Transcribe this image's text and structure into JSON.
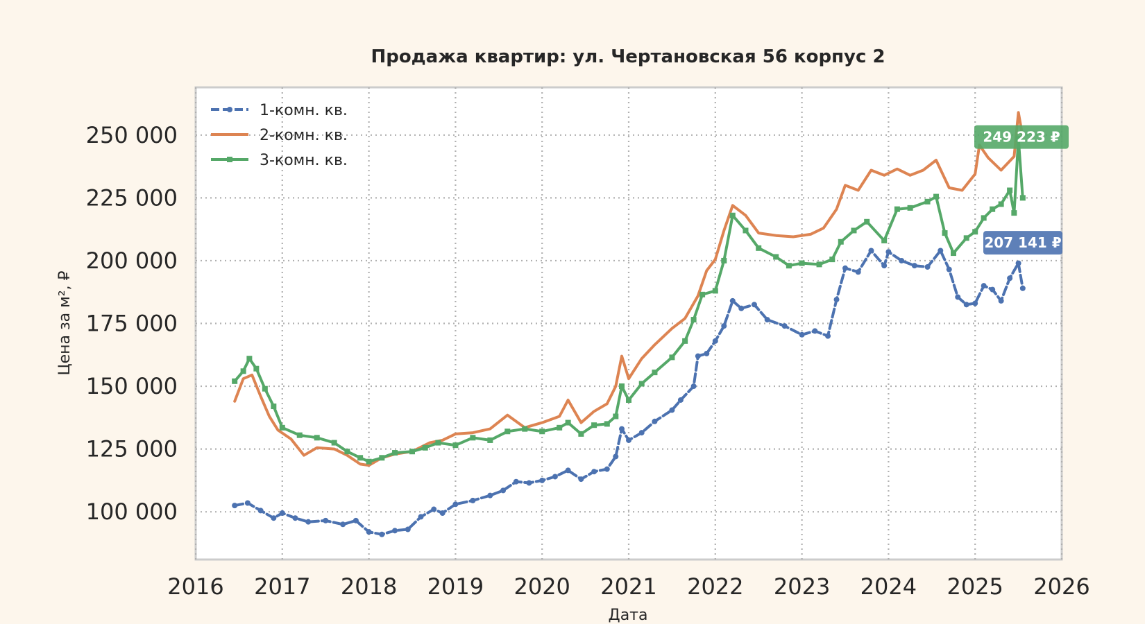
{
  "chart_data": {
    "type": "line",
    "title": "Продажа квартир: ул. Чертановская 56 корпус 2",
    "xlabel": "Дата",
    "ylabel": "Цена за м², ₽",
    "xlim": [
      2016.0,
      2026.0
    ],
    "ylim": [
      81000,
      269000
    ],
    "x_ticks": [
      "2016",
      "2017",
      "2018",
      "2019",
      "2020",
      "2021",
      "2022",
      "2023",
      "2024",
      "2025",
      "2026"
    ],
    "y_ticks": [
      "100 000",
      "125 000",
      "150 000",
      "175 000",
      "200 000",
      "225 000",
      "250 000"
    ],
    "y_tick_values": [
      100000,
      125000,
      150000,
      175000,
      200000,
      225000,
      250000
    ],
    "grid": true,
    "legend_position": "top-left",
    "series": [
      {
        "name": "1-комн. кв.",
        "color": "#4c72b0",
        "style": "dashed-dots",
        "points": [
          [
            2016.45,
            102500
          ],
          [
            2016.6,
            103500
          ],
          [
            2016.75,
            100500
          ],
          [
            2016.9,
            97500
          ],
          [
            2017.0,
            99500
          ],
          [
            2017.15,
            97500
          ],
          [
            2017.3,
            96000
          ],
          [
            2017.5,
            96500
          ],
          [
            2017.7,
            95000
          ],
          [
            2017.85,
            96500
          ],
          [
            2018.0,
            92000
          ],
          [
            2018.15,
            91000
          ],
          [
            2018.3,
            92500
          ],
          [
            2018.45,
            93000
          ],
          [
            2018.6,
            98000
          ],
          [
            2018.75,
            101000
          ],
          [
            2018.85,
            99500
          ],
          [
            2019.0,
            103000
          ],
          [
            2019.2,
            104500
          ],
          [
            2019.4,
            106500
          ],
          [
            2019.55,
            108500
          ],
          [
            2019.7,
            112000
          ],
          [
            2019.85,
            111500
          ],
          [
            2020.0,
            112500
          ],
          [
            2020.15,
            114000
          ],
          [
            2020.3,
            116500
          ],
          [
            2020.45,
            113000
          ],
          [
            2020.6,
            116000
          ],
          [
            2020.75,
            117000
          ],
          [
            2020.85,
            122000
          ],
          [
            2020.92,
            133000
          ],
          [
            2021.0,
            128500
          ],
          [
            2021.15,
            131500
          ],
          [
            2021.3,
            136000
          ],
          [
            2021.5,
            140500
          ],
          [
            2021.6,
            144500
          ],
          [
            2021.75,
            150000
          ],
          [
            2021.8,
            162000
          ],
          [
            2021.9,
            163000
          ],
          [
            2022.0,
            168000
          ],
          [
            2022.1,
            174000
          ],
          [
            2022.2,
            184000
          ],
          [
            2022.3,
            181000
          ],
          [
            2022.45,
            182500
          ],
          [
            2022.6,
            176500
          ],
          [
            2022.8,
            174000
          ],
          [
            2023.0,
            170500
          ],
          [
            2023.15,
            172000
          ],
          [
            2023.3,
            170000
          ],
          [
            2023.4,
            184500
          ],
          [
            2023.5,
            197000
          ],
          [
            2023.65,
            195500
          ],
          [
            2023.8,
            204000
          ],
          [
            2023.95,
            198000
          ],
          [
            2024.0,
            203500
          ],
          [
            2024.15,
            200000
          ],
          [
            2024.3,
            198000
          ],
          [
            2024.45,
            197500
          ],
          [
            2024.6,
            204000
          ],
          [
            2024.7,
            196500
          ],
          [
            2024.8,
            185500
          ],
          [
            2024.9,
            182500
          ],
          [
            2025.0,
            183000
          ],
          [
            2025.1,
            190000
          ],
          [
            2025.2,
            188500
          ],
          [
            2025.3,
            184000
          ],
          [
            2025.4,
            193000
          ],
          [
            2025.5,
            199000
          ],
          [
            2025.55,
            189000
          ]
        ]
      },
      {
        "name": "2-комн. кв.",
        "color": "#dd8452",
        "style": "solid",
        "points": [
          [
            2016.45,
            144000
          ],
          [
            2016.55,
            153000
          ],
          [
            2016.65,
            154500
          ],
          [
            2016.75,
            146000
          ],
          [
            2016.85,
            138000
          ],
          [
            2016.95,
            132500
          ],
          [
            2017.1,
            129000
          ],
          [
            2017.25,
            122500
          ],
          [
            2017.4,
            125500
          ],
          [
            2017.6,
            125000
          ],
          [
            2017.75,
            122500
          ],
          [
            2017.9,
            119000
          ],
          [
            2018.0,
            118500
          ],
          [
            2018.15,
            121500
          ],
          [
            2018.3,
            123000
          ],
          [
            2018.5,
            124000
          ],
          [
            2018.7,
            127500
          ],
          [
            2018.85,
            128500
          ],
          [
            2019.0,
            131000
          ],
          [
            2019.2,
            131500
          ],
          [
            2019.4,
            133000
          ],
          [
            2019.6,
            138500
          ],
          [
            2019.8,
            133500
          ],
          [
            2020.0,
            135500
          ],
          [
            2020.2,
            138000
          ],
          [
            2020.3,
            144500
          ],
          [
            2020.45,
            135500
          ],
          [
            2020.6,
            140000
          ],
          [
            2020.75,
            143000
          ],
          [
            2020.85,
            150000
          ],
          [
            2020.92,
            162000
          ],
          [
            2021.0,
            153000
          ],
          [
            2021.15,
            161000
          ],
          [
            2021.3,
            166500
          ],
          [
            2021.5,
            173000
          ],
          [
            2021.65,
            177000
          ],
          [
            2021.8,
            186000
          ],
          [
            2021.9,
            196000
          ],
          [
            2022.0,
            200500
          ],
          [
            2022.1,
            212000
          ],
          [
            2022.2,
            222000
          ],
          [
            2022.35,
            218000
          ],
          [
            2022.5,
            211000
          ],
          [
            2022.7,
            210000
          ],
          [
            2022.9,
            209500
          ],
          [
            2023.1,
            210500
          ],
          [
            2023.25,
            213000
          ],
          [
            2023.4,
            220500
          ],
          [
            2023.5,
            230000
          ],
          [
            2023.65,
            228000
          ],
          [
            2023.8,
            236000
          ],
          [
            2023.95,
            234000
          ],
          [
            2024.1,
            236500
          ],
          [
            2024.25,
            234000
          ],
          [
            2024.4,
            236000
          ],
          [
            2024.55,
            240000
          ],
          [
            2024.7,
            229000
          ],
          [
            2024.85,
            228000
          ],
          [
            2025.0,
            234500
          ],
          [
            2025.05,
            246000
          ],
          [
            2025.15,
            241000
          ],
          [
            2025.3,
            236000
          ],
          [
            2025.45,
            241500
          ],
          [
            2025.5,
            259000
          ],
          [
            2025.55,
            249223
          ]
        ]
      },
      {
        "name": "3-комн. кв.",
        "color": "#55a868",
        "style": "solid-squares",
        "points": [
          [
            2016.45,
            152000
          ],
          [
            2016.55,
            156000
          ],
          [
            2016.62,
            161000
          ],
          [
            2016.7,
            157000
          ],
          [
            2016.8,
            149000
          ],
          [
            2016.9,
            142000
          ],
          [
            2017.0,
            133500
          ],
          [
            2017.2,
            130500
          ],
          [
            2017.4,
            129500
          ],
          [
            2017.6,
            127500
          ],
          [
            2017.75,
            124000
          ],
          [
            2017.9,
            121500
          ],
          [
            2018.0,
            120000
          ],
          [
            2018.15,
            121500
          ],
          [
            2018.3,
            123500
          ],
          [
            2018.5,
            124000
          ],
          [
            2018.65,
            125500
          ],
          [
            2018.8,
            127500
          ],
          [
            2019.0,
            126500
          ],
          [
            2019.2,
            129500
          ],
          [
            2019.4,
            128500
          ],
          [
            2019.6,
            132000
          ],
          [
            2019.8,
            133000
          ],
          [
            2020.0,
            132000
          ],
          [
            2020.2,
            133500
          ],
          [
            2020.3,
            135500
          ],
          [
            2020.45,
            131000
          ],
          [
            2020.6,
            134500
          ],
          [
            2020.75,
            135000
          ],
          [
            2020.85,
            138000
          ],
          [
            2020.92,
            150000
          ],
          [
            2021.0,
            144500
          ],
          [
            2021.15,
            151000
          ],
          [
            2021.3,
            155500
          ],
          [
            2021.5,
            161500
          ],
          [
            2021.65,
            168000
          ],
          [
            2021.75,
            176500
          ],
          [
            2021.85,
            186500
          ],
          [
            2022.0,
            188000
          ],
          [
            2022.1,
            200000
          ],
          [
            2022.2,
            218000
          ],
          [
            2022.35,
            212000
          ],
          [
            2022.5,
            205000
          ],
          [
            2022.7,
            201500
          ],
          [
            2022.85,
            198000
          ],
          [
            2023.0,
            199000
          ],
          [
            2023.2,
            198500
          ],
          [
            2023.35,
            200500
          ],
          [
            2023.45,
            207500
          ],
          [
            2023.6,
            212000
          ],
          [
            2023.75,
            215500
          ],
          [
            2023.95,
            208000
          ],
          [
            2024.1,
            220500
          ],
          [
            2024.25,
            221000
          ],
          [
            2024.45,
            223500
          ],
          [
            2024.55,
            225500
          ],
          [
            2024.65,
            211000
          ],
          [
            2024.75,
            203000
          ],
          [
            2024.9,
            209000
          ],
          [
            2025.0,
            211500
          ],
          [
            2025.1,
            217000
          ],
          [
            2025.2,
            220500
          ],
          [
            2025.3,
            222500
          ],
          [
            2025.4,
            228000
          ],
          [
            2025.45,
            219000
          ],
          [
            2025.5,
            248500
          ],
          [
            2025.55,
            225000
          ]
        ]
      }
    ],
    "annotations": [
      {
        "text": "249 223 ₽",
        "series": "3-комн. кв.",
        "value": 249223,
        "color": "#55a868"
      },
      {
        "text": "207 141 ₽",
        "series": "1-комн. кв.",
        "value": 207141,
        "color": "#4c72b0"
      }
    ]
  }
}
